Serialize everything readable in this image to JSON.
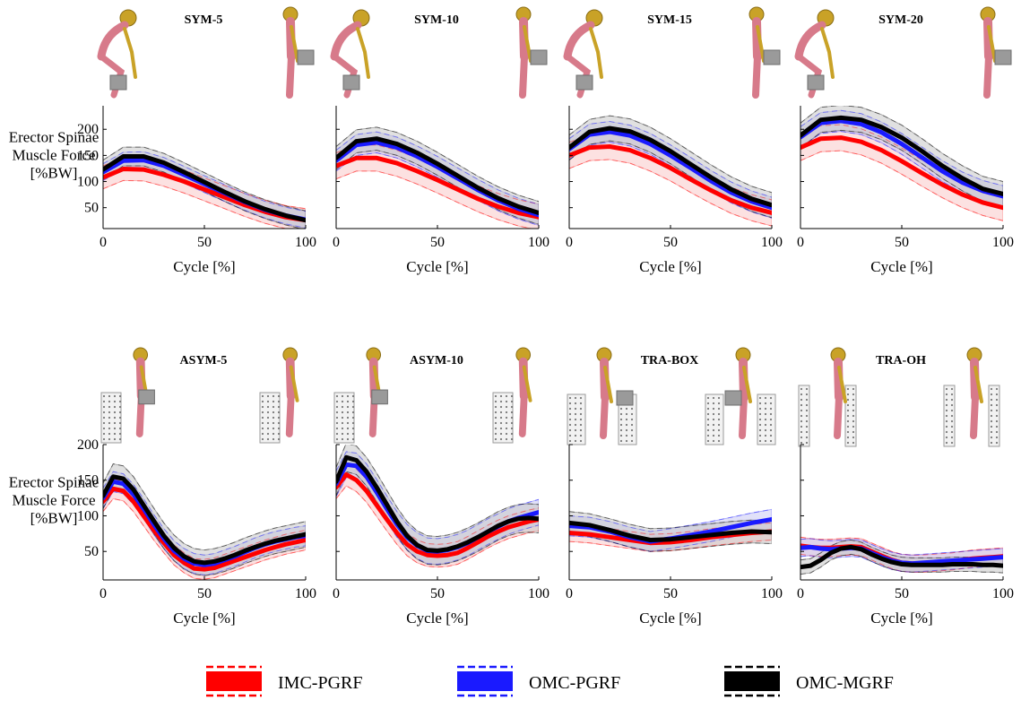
{
  "figure": {
    "ylabel_lines": [
      "Erector Spinae",
      "Muscle Force",
      "[%BW]"
    ],
    "xlabel": "Cycle [%]",
    "legend": [
      {
        "label": "IMC-PGRF",
        "color": "#ff0000",
        "band": "#f6b8b8"
      },
      {
        "label": "OMC-PGRF",
        "color": "#1a1aff",
        "band": "#b4b8f0"
      },
      {
        "label": "OMC-MGRF",
        "color": "#000000",
        "band": "#bfbfbf"
      }
    ],
    "band_colors": {
      "IMC-PGRF": "#f9c8c8",
      "OMC-PGRF": "#c8c8f4",
      "OMC-MGRF": "#c8c8c8"
    },
    "figure_icons": [
      "skeleton-lifting-figure",
      "box",
      "box-rack"
    ]
  },
  "chart_data": [
    {
      "type": "line",
      "title": "SYM-5",
      "xlabel": "Cycle [%]",
      "ylabel": "Erector Spinae Muscle Force [%BW]",
      "xlim": [
        0,
        100
      ],
      "ylim": [
        10,
        245
      ],
      "xticks": [
        0,
        50,
        100
      ],
      "yticks": [
        50,
        100,
        150,
        200
      ],
      "grid": false,
      "x": [
        0,
        10,
        20,
        30,
        40,
        50,
        60,
        70,
        80,
        90,
        100
      ],
      "series": [
        {
          "name": "IMC-PGRF",
          "values": [
            108,
            124,
            123,
            113,
            100,
            85,
            70,
            55,
            42,
            32,
            26
          ],
          "band": 22
        },
        {
          "name": "OMC-PGRF",
          "values": [
            118,
            140,
            141,
            130,
            113,
            95,
            78,
            61,
            46,
            35,
            27
          ],
          "band": 16
        },
        {
          "name": "OMC-MGRF",
          "values": [
            123,
            148,
            148,
            136,
            118,
            99,
            80,
            62,
            47,
            35,
            26
          ],
          "band": 18
        }
      ]
    },
    {
      "type": "line",
      "title": "SYM-10",
      "xlabel": "Cycle [%]",
      "ylabel": "",
      "xlim": [
        0,
        100
      ],
      "ylim": [
        10,
        245
      ],
      "xticks": [
        0,
        50,
        100
      ],
      "yticks": [
        50,
        100,
        150,
        200
      ],
      "grid": false,
      "x": [
        0,
        10,
        20,
        30,
        40,
        50,
        60,
        70,
        80,
        90,
        100
      ],
      "series": [
        {
          "name": "IMC-PGRF",
          "values": [
            130,
            145,
            145,
            135,
            120,
            103,
            85,
            67,
            52,
            40,
            32
          ],
          "band": 25
        },
        {
          "name": "OMC-PGRF",
          "values": [
            140,
            170,
            175,
            165,
            148,
            128,
            106,
            84,
            64,
            48,
            36
          ],
          "band": 20
        },
        {
          "name": "OMC-MGRF",
          "values": [
            145,
            177,
            182,
            172,
            155,
            134,
            111,
            88,
            68,
            52,
            40
          ],
          "band": 22
        }
      ]
    },
    {
      "type": "line",
      "title": "SYM-15",
      "xlabel": "Cycle [%]",
      "ylabel": "",
      "xlim": [
        0,
        100
      ],
      "ylim": [
        10,
        245
      ],
      "xticks": [
        0,
        50,
        100
      ],
      "yticks": [
        50,
        100,
        150,
        200
      ],
      "grid": false,
      "x": [
        0,
        10,
        20,
        30,
        40,
        50,
        60,
        70,
        80,
        90,
        100
      ],
      "series": [
        {
          "name": "IMC-PGRF",
          "values": [
            150,
            165,
            167,
            160,
            145,
            126,
            104,
            83,
            64,
            50,
            40
          ],
          "band": 25
        },
        {
          "name": "OMC-PGRF",
          "values": [
            162,
            190,
            195,
            188,
            172,
            150,
            126,
            101,
            79,
            62,
            50
          ],
          "band": 20
        },
        {
          "name": "OMC-MGRF",
          "values": [
            165,
            195,
            202,
            196,
            180,
            158,
            133,
            108,
            85,
            67,
            55
          ],
          "band": 24
        }
      ]
    },
    {
      "type": "line",
      "title": "SYM-20",
      "xlabel": "Cycle [%]",
      "ylabel": "",
      "xlim": [
        0,
        100
      ],
      "ylim": [
        10,
        245
      ],
      "xticks": [
        0,
        50,
        100
      ],
      "yticks": [
        50,
        100,
        150,
        200
      ],
      "grid": false,
      "x": [
        0,
        10,
        20,
        30,
        40,
        50,
        60,
        70,
        80,
        90,
        100
      ],
      "series": [
        {
          "name": "IMC-PGRF",
          "values": [
            165,
            182,
            184,
            176,
            160,
            139,
            116,
            94,
            75,
            60,
            50
          ],
          "band": 25
        },
        {
          "name": "OMC-PGRF",
          "values": [
            185,
            212,
            216,
            210,
            194,
            172,
            146,
            120,
            98,
            82,
            72
          ],
          "band": 20
        },
        {
          "name": "OMC-MGRF",
          "values": [
            188,
            218,
            222,
            218,
            204,
            184,
            158,
            130,
            106,
            86,
            76
          ],
          "band": 24
        }
      ]
    },
    {
      "type": "line",
      "title": "ASYM-5",
      "xlabel": "Cycle [%]",
      "ylabel": "Erector Spinae Muscle Force [%BW]",
      "xlim": [
        0,
        100
      ],
      "ylim": [
        10,
        200
      ],
      "xticks": [
        0,
        50,
        100
      ],
      "yticks": [
        50,
        100,
        150,
        200
      ],
      "grid": false,
      "x": [
        0,
        5,
        10,
        15,
        20,
        25,
        30,
        35,
        40,
        45,
        50,
        55,
        60,
        65,
        70,
        75,
        80,
        85,
        90,
        95,
        100
      ],
      "series": [
        {
          "name": "IMC-PGRF",
          "values": [
            120,
            138,
            135,
            120,
            100,
            80,
            62,
            45,
            34,
            26,
            25,
            27,
            32,
            37,
            42,
            47,
            52,
            56,
            60,
            63,
            66
          ],
          "band": 14
        },
        {
          "name": "OMC-PGRF",
          "values": [
            125,
            148,
            145,
            130,
            110,
            88,
            68,
            51,
            40,
            33,
            31,
            33,
            38,
            43,
            49,
            55,
            60,
            64,
            67,
            70,
            72
          ],
          "band": 14
        },
        {
          "name": "OMC-MGRF",
          "values": [
            128,
            155,
            152,
            137,
            115,
            93,
            72,
            55,
            43,
            36,
            34,
            36,
            40,
            45,
            51,
            56,
            61,
            65,
            68,
            71,
            74
          ],
          "band": 18
        }
      ]
    },
    {
      "type": "line",
      "title": "ASYM-10",
      "xlabel": "Cycle [%]",
      "ylabel": "",
      "xlim": [
        0,
        100
      ],
      "ylim": [
        10,
        200
      ],
      "xticks": [
        0,
        50,
        100
      ],
      "yticks": [
        50,
        100,
        150,
        200
      ],
      "grid": false,
      "x": [
        0,
        5,
        10,
        15,
        20,
        25,
        30,
        35,
        40,
        45,
        50,
        55,
        60,
        65,
        70,
        75,
        80,
        85,
        90,
        95,
        100
      ],
      "series": [
        {
          "name": "IMC-PGRF",
          "values": [
            140,
            158,
            150,
            135,
            115,
            95,
            76,
            60,
            50,
            45,
            44,
            45,
            48,
            55,
            63,
            71,
            78,
            84,
            88,
            92,
            95
          ],
          "band": 16
        },
        {
          "name": "OMC-PGRF",
          "values": [
            145,
            172,
            170,
            155,
            133,
            110,
            88,
            70,
            58,
            51,
            50,
            52,
            56,
            62,
            70,
            78,
            85,
            92,
            97,
            101,
            105
          ],
          "band": 18
        },
        {
          "name": "OMC-MGRF",
          "values": [
            148,
            182,
            178,
            162,
            140,
            116,
            92,
            72,
            59,
            52,
            51,
            53,
            57,
            63,
            70,
            78,
            86,
            92,
            96,
            97,
            96
          ],
          "band": 20
        }
      ]
    },
    {
      "type": "line",
      "title": "TRA-BOX",
      "xlabel": "Cycle [%]",
      "ylabel": "",
      "xlim": [
        0,
        100
      ],
      "ylim": [
        10,
        200
      ],
      "xticks": [
        0,
        50,
        100
      ],
      "yticks": [
        50,
        100,
        150,
        200
      ],
      "grid": false,
      "x": [
        0,
        10,
        20,
        30,
        40,
        50,
        60,
        70,
        80,
        90,
        100
      ],
      "series": [
        {
          "name": "IMC-PGRF",
          "values": [
            76,
            74,
            70,
            66,
            62,
            63,
            66,
            70,
            73,
            76,
            78
          ],
          "band": 12
        },
        {
          "name": "OMC-PGRF",
          "values": [
            86,
            84,
            78,
            70,
            64,
            68,
            73,
            78,
            84,
            90,
            95
          ],
          "band": 14
        },
        {
          "name": "OMC-MGRF",
          "values": [
            90,
            87,
            80,
            72,
            66,
            67,
            70,
            73,
            76,
            78,
            77
          ],
          "band": 16
        }
      ]
    },
    {
      "type": "line",
      "title": "TRA-OH",
      "xlabel": "Cycle [%]",
      "ylabel": "",
      "xlim": [
        0,
        100
      ],
      "ylim": [
        10,
        200
      ],
      "xticks": [
        0,
        50,
        100
      ],
      "yticks": [
        50,
        100,
        150,
        200
      ],
      "grid": false,
      "x": [
        0,
        5,
        10,
        15,
        20,
        25,
        30,
        35,
        40,
        45,
        50,
        55,
        60,
        65,
        70,
        75,
        80,
        85,
        90,
        95,
        100
      ],
      "series": [
        {
          "name": "IMC-PGRF",
          "values": [
            58,
            56,
            55,
            55,
            56,
            57,
            56,
            50,
            44,
            38,
            34,
            33,
            33,
            34,
            35,
            36,
            38,
            40,
            41,
            42,
            43
          ],
          "band": 12
        },
        {
          "name": "OMC-PGRF",
          "values": [
            55,
            56,
            54,
            53,
            54,
            55,
            54,
            48,
            42,
            37,
            34,
            33,
            34,
            35,
            36,
            37,
            38,
            39,
            40,
            41,
            42
          ],
          "band": 12
        },
        {
          "name": "OMC-MGRF",
          "values": [
            28,
            30,
            38,
            48,
            54,
            56,
            53,
            46,
            40,
            35,
            32,
            31,
            31,
            31,
            31,
            32,
            32,
            32,
            31,
            31,
            30
          ],
          "band": 10
        }
      ]
    }
  ]
}
